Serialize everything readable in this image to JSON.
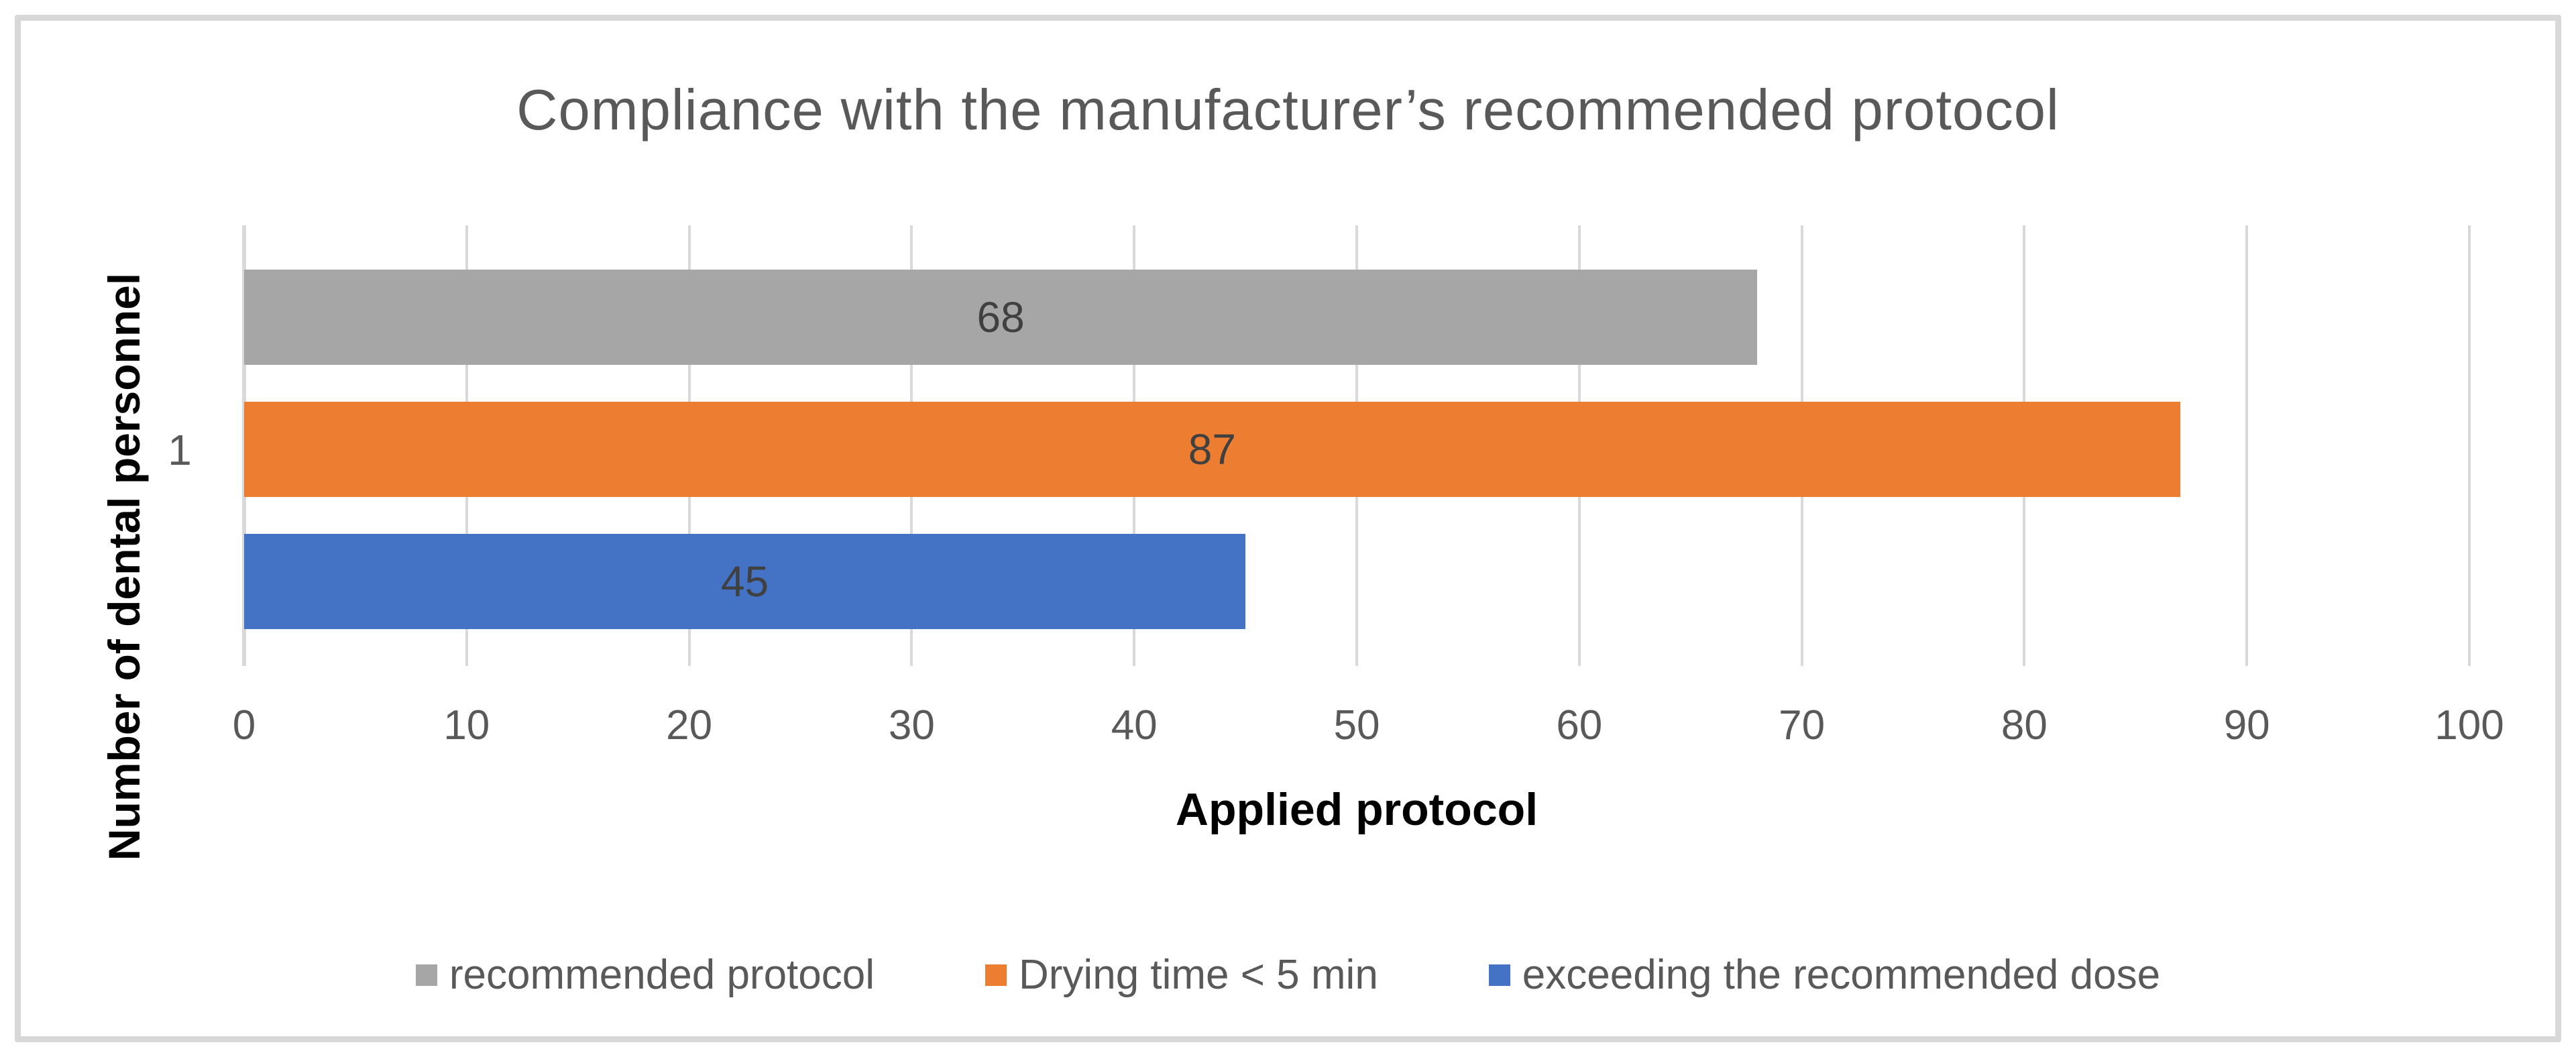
{
  "chart_data": {
    "type": "bar",
    "orientation": "horizontal",
    "title": "Compliance with the manufacturer’s recommended protocol",
    "xlabel": "Applied protocol",
    "ylabel": "Number of dental personnel",
    "categories": [
      "1"
    ],
    "series": [
      {
        "name": "recommended protocol",
        "color": "#A6A6A6",
        "values": [
          68
        ]
      },
      {
        "name": "Drying time < 5 min",
        "color": "#ED7D31",
        "values": [
          87
        ]
      },
      {
        "name": "exceeding the recommended dose",
        "color": "#4472C4",
        "values": [
          45
        ]
      }
    ],
    "xlim": [
      0,
      100
    ],
    "xticks": [
      0,
      10,
      20,
      30,
      40,
      50,
      60,
      70,
      80,
      90,
      100
    ],
    "grid": true,
    "data_labels_shown": true,
    "legend_position": "bottom"
  },
  "colors": {
    "gridline": "#D9D9D9",
    "axis_line": "#D9D9D9",
    "frame_border": "#D8D8D8",
    "title_text": "#595959",
    "tick_text": "#595959",
    "data_label_text": "#404040",
    "axis_title_text": "#000000",
    "legend_text": "#595959",
    "background": "#FFFFFF"
  }
}
